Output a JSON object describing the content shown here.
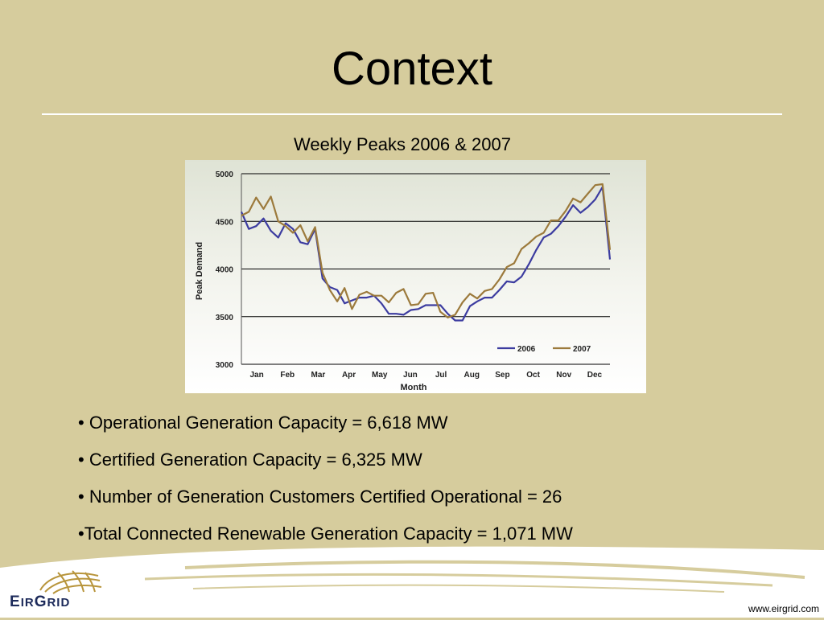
{
  "slide": {
    "title": "Context",
    "chart_heading": "Weekly Peaks 2006 & 2007",
    "bullets": [
      "• Operational Generation Capacity = 6,618 MW",
      "• Certified Generation Capacity = 6,325 MW",
      "• Number of Generation Customers Certified Operational = 26",
      "•Total Connected Renewable Generation Capacity = 1,071 MW"
    ],
    "logo_text": "EirGrid",
    "url": "www.eirgrid.com"
  },
  "chart_data": {
    "type": "line",
    "xlabel": "Month",
    "ylabel": "Peak Demand",
    "ylim": [
      3000,
      5000
    ],
    "yticks": [
      3000,
      3500,
      4000,
      4500,
      5000
    ],
    "month_labels": [
      "Jan",
      "Feb",
      "Mar",
      "Apr",
      "May",
      "Jun",
      "Jul",
      "Aug",
      "Sep",
      "Oct",
      "Nov",
      "Dec"
    ],
    "x_week_range": [
      1,
      53
    ],
    "grid": "horizontal",
    "legend": "bottom-right",
    "series": [
      {
        "name": "2006",
        "color": "#3c3ca0",
        "values": [
          4600,
          4420,
          4450,
          4530,
          4400,
          4330,
          4480,
          4420,
          4280,
          4260,
          4420,
          3900,
          3810,
          3780,
          3640,
          3670,
          3700,
          3700,
          3720,
          3640,
          3530,
          3530,
          3520,
          3570,
          3580,
          3620,
          3620,
          3620,
          3530,
          3460,
          3460,
          3610,
          3660,
          3700,
          3700,
          3780,
          3870,
          3860,
          3920,
          4050,
          4200,
          4330,
          4370,
          4450,
          4550,
          4670,
          4590,
          4650,
          4730,
          4860,
          4100
        ]
      },
      {
        "name": "2007",
        "color": "#9c7a3c",
        "values": [
          4560,
          4600,
          4750,
          4630,
          4760,
          4500,
          4450,
          4380,
          4460,
          4290,
          4440,
          3960,
          3780,
          3660,
          3800,
          3580,
          3730,
          3760,
          3720,
          3720,
          3650,
          3750,
          3790,
          3620,
          3630,
          3740,
          3750,
          3550,
          3490,
          3520,
          3650,
          3740,
          3690,
          3770,
          3790,
          3890,
          4020,
          4060,
          4210,
          4270,
          4340,
          4380,
          4510,
          4510,
          4610,
          4740,
          4700,
          4790,
          4880,
          4890,
          4200
        ]
      }
    ]
  }
}
